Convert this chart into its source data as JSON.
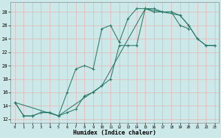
{
  "xlabel": "Humidex (Indice chaleur)",
  "bg_color": "#cde8e8",
  "grid_color": "#b0d4d4",
  "line_color": "#2a7a6a",
  "xlim": [
    -0.5,
    23.5
  ],
  "ylim": [
    11.5,
    29.5
  ],
  "xticks": [
    0,
    1,
    2,
    3,
    4,
    5,
    6,
    7,
    8,
    9,
    10,
    11,
    12,
    13,
    14,
    15,
    16,
    17,
    18,
    19,
    20,
    21,
    22,
    23
  ],
  "yticks": [
    12,
    14,
    16,
    18,
    20,
    22,
    24,
    26,
    28
  ],
  "series": [
    {
      "x": [
        0,
        1,
        2,
        3,
        4,
        5,
        6,
        7,
        8,
        9,
        10,
        11,
        12,
        13,
        14,
        15,
        16,
        17,
        18,
        19,
        20
      ],
      "y": [
        14.5,
        12.5,
        12.5,
        13.0,
        13.0,
        12.5,
        16.0,
        19.5,
        20.0,
        19.5,
        25.5,
        26.0,
        23.5,
        27.0,
        28.5,
        28.5,
        28.0,
        28.0,
        28.0,
        26.0,
        25.5
      ]
    },
    {
      "x": [
        0,
        1,
        2,
        3,
        4,
        5,
        6,
        7,
        8,
        9,
        10,
        11,
        12,
        13,
        14,
        15,
        16,
        17,
        18,
        19,
        20,
        21,
        22,
        23
      ],
      "y": [
        14.5,
        12.5,
        12.5,
        13.0,
        13.0,
        12.5,
        13.0,
        13.5,
        15.5,
        16.0,
        17.0,
        18.0,
        23.0,
        23.0,
        23.0,
        28.5,
        28.5,
        28.0,
        28.0,
        27.5,
        26.0,
        24.0,
        23.0,
        23.0
      ]
    },
    {
      "x": [
        0,
        5,
        10,
        15,
        19,
        20,
        21,
        22,
        23
      ],
      "y": [
        14.5,
        12.5,
        17.0,
        28.5,
        27.5,
        26.0,
        24.0,
        23.0,
        23.0
      ]
    }
  ]
}
